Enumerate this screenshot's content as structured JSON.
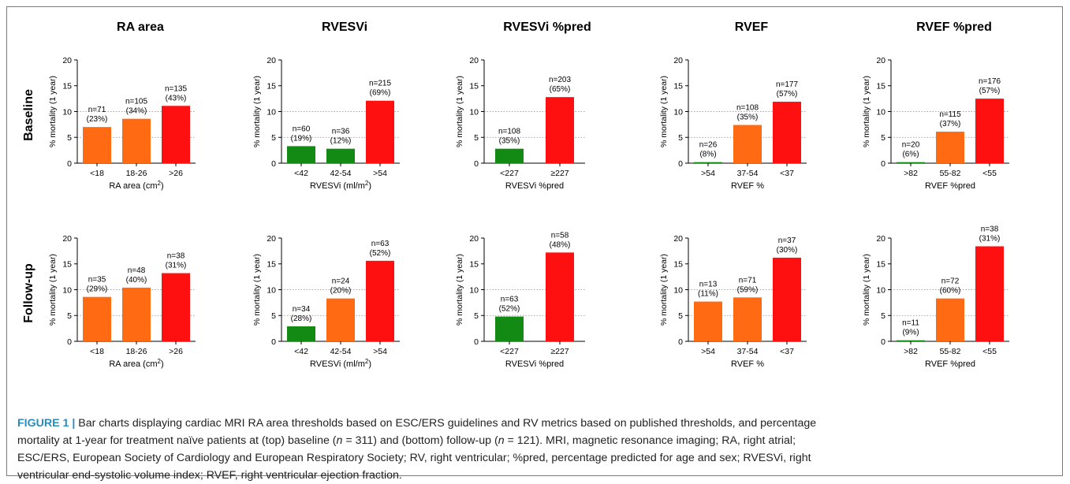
{
  "colors": {
    "green": "#138a13",
    "orange": "#ff6a12",
    "red": "#ff1010",
    "caption_label": "#2a8bbf"
  },
  "columns": [
    "RA area",
    "RVESVi",
    "RVESVi %pred",
    "RVEF",
    "RVEF %pred"
  ],
  "rows": [
    "Baseline",
    "Follow-up"
  ],
  "caption": {
    "label": "FIGURE 1 |",
    "line1": "Bar charts displaying cardiac MRI RA area thresholds based on ESC/ERS guidelines and RV metrics based on published thresholds, and percentage",
    "line2_a": "mortality at 1-year for treatment naïve patients at (top) baseline (",
    "line2_n1": "n",
    "line2_b": " = 311) and (bottom) follow-up (",
    "line2_n2": "n",
    "line2_c": " = 121). MRI, magnetic resonance imaging; RA, right atrial;",
    "line3": "ESC/ERS, European Society of Cardiology and European Respiratory Society; RV, right ventricular; %pred, percentage predicted for age and sex; RVESVi, right",
    "line4": "ventricular end-systolic volume index; RVEF, right ventricular ejection fraction."
  },
  "chart_data": [
    {
      "type": "bar",
      "row": "Baseline",
      "column": "RA area",
      "ylabel": "% mortality (1 year)",
      "xlabel": "RA area (cm",
      "xlabel_sup": "2",
      "xlabel_end": ")",
      "ylim": [
        0,
        20
      ],
      "yticks": [
        "0",
        "5",
        "10",
        "15",
        "20"
      ],
      "categories": [
        "<18",
        "18-26",
        ">26"
      ],
      "values": [
        7.0,
        8.6,
        11.1
      ],
      "colors": [
        "orange",
        "orange",
        "red"
      ],
      "labels_n": [
        "n=71",
        "n=105",
        "n=135"
      ],
      "labels_pct": [
        "(23%)",
        "(34%)",
        "(43%)"
      ]
    },
    {
      "type": "bar",
      "row": "Baseline",
      "column": "RVESVi",
      "ylabel": "% mortality (1 year)",
      "xlabel": "RVESVi (ml/m",
      "xlabel_sup": "2",
      "xlabel_end": ")",
      "ylim": [
        0,
        20
      ],
      "yticks": [
        "0",
        "5",
        "10",
        "15",
        "20"
      ],
      "categories": [
        "<42",
        "42-54",
        ">54"
      ],
      "values": [
        3.3,
        2.8,
        12.1
      ],
      "colors": [
        "green",
        "green",
        "red"
      ],
      "labels_n": [
        "n=60",
        "n=36",
        "n=215"
      ],
      "labels_pct": [
        "(19%)",
        "(12%)",
        "(69%)"
      ]
    },
    {
      "type": "bar",
      "row": "Baseline",
      "column": "RVESVi %pred",
      "ylabel": "% mortality (1 year)",
      "xlabel": "RVESVi %pred",
      "xlabel_sup": "",
      "xlabel_end": "",
      "ylim": [
        0,
        20
      ],
      "yticks": [
        "0",
        "5",
        "10",
        "15",
        "20"
      ],
      "categories": [
        "<227",
        "≥227"
      ],
      "values": [
        2.8,
        12.8
      ],
      "colors": [
        "green",
        "red"
      ],
      "labels_n": [
        "n=108",
        "n=203"
      ],
      "labels_pct": [
        "(35%)",
        "(65%)"
      ]
    },
    {
      "type": "bar",
      "row": "Baseline",
      "column": "RVEF",
      "ylabel": "% mortality (1 year)",
      "xlabel": "RVEF %",
      "xlabel_sup": "",
      "xlabel_end": "",
      "ylim": [
        0,
        20
      ],
      "yticks": [
        "0",
        "5",
        "10",
        "15",
        "20"
      ],
      "categories": [
        ">54",
        "37-54",
        "<37"
      ],
      "values": [
        0.2,
        7.4,
        11.9
      ],
      "colors": [
        "green",
        "orange",
        "red"
      ],
      "labels_n": [
        "n=26",
        "n=108",
        "n=177"
      ],
      "labels_pct": [
        "(8%)",
        "(35%)",
        "(57%)"
      ]
    },
    {
      "type": "bar",
      "row": "Baseline",
      "column": "RVEF %pred",
      "ylabel": "% mortality (1 year)",
      "xlabel": "RVEF %pred",
      "xlabel_sup": "",
      "xlabel_end": "",
      "ylim": [
        0,
        20
      ],
      "yticks": [
        "0",
        "5",
        "10",
        "15",
        "20"
      ],
      "categories": [
        ">82",
        "55-82",
        "<55"
      ],
      "values": [
        0.2,
        6.1,
        12.5
      ],
      "colors": [
        "green",
        "orange",
        "red"
      ],
      "labels_n": [
        "n=20",
        "n=115",
        "n=176"
      ],
      "labels_pct": [
        "(6%)",
        "(37%)",
        "(57%)"
      ]
    },
    {
      "type": "bar",
      "row": "Follow-up",
      "column": "RA area",
      "ylabel": "% mortality (1 year)",
      "xlabel": "RA area (cm",
      "xlabel_sup": "2",
      "xlabel_end": ")",
      "ylim": [
        0,
        20
      ],
      "yticks": [
        "0",
        "5",
        "10",
        "15",
        "20"
      ],
      "categories": [
        "<18",
        "18-26",
        ">26"
      ],
      "values": [
        8.6,
        10.4,
        13.2
      ],
      "colors": [
        "orange",
        "orange",
        "red"
      ],
      "labels_n": [
        "n=35",
        "n=48",
        "n=38"
      ],
      "labels_pct": [
        "(29%)",
        "(40%)",
        "(31%)"
      ]
    },
    {
      "type": "bar",
      "row": "Follow-up",
      "column": "RVESVi",
      "ylabel": "% mortality (1 year)",
      "xlabel": "RVESVi (ml/m",
      "xlabel_sup": "2",
      "xlabel_end": ")",
      "ylim": [
        0,
        20
      ],
      "yticks": [
        "0",
        "5",
        "10",
        "15",
        "20"
      ],
      "categories": [
        "<42",
        "42-54",
        ">54"
      ],
      "values": [
        2.9,
        8.3,
        15.6
      ],
      "colors": [
        "green",
        "orange",
        "red"
      ],
      "labels_n": [
        "n=34",
        "n=24",
        "n=63"
      ],
      "labels_pct": [
        "(28%)",
        "(20%)",
        "(52%)"
      ]
    },
    {
      "type": "bar",
      "row": "Follow-up",
      "column": "RVESVi %pred",
      "ylabel": "% mortality (1 year)",
      "xlabel": "RVESVi %pred",
      "xlabel_sup": "",
      "xlabel_end": "",
      "ylim": [
        0,
        20
      ],
      "yticks": [
        "0",
        "5",
        "10",
        "15",
        "20"
      ],
      "categories": [
        "<227",
        "≥227"
      ],
      "values": [
        4.8,
        17.2
      ],
      "colors": [
        "green",
        "red"
      ],
      "labels_n": [
        "n=63",
        "n=58"
      ],
      "labels_pct": [
        "(52%)",
        "(48%)"
      ]
    },
    {
      "type": "bar",
      "row": "Follow-up",
      "column": "RVEF",
      "ylabel": "% mortality (1 year)",
      "xlabel": "RVEF %",
      "xlabel_sup": "",
      "xlabel_end": "",
      "ylim": [
        0,
        20
      ],
      "yticks": [
        "0",
        "5",
        "10",
        "15",
        "20"
      ],
      "categories": [
        ">54",
        "37-54",
        "<37"
      ],
      "values": [
        7.7,
        8.5,
        16.2
      ],
      "colors": [
        "orange",
        "orange",
        "red"
      ],
      "labels_n": [
        "n=13",
        "n=71",
        "n=37"
      ],
      "labels_pct": [
        "(11%)",
        "(59%)",
        "(30%)"
      ]
    },
    {
      "type": "bar",
      "row": "Follow-up",
      "column": "RVEF %pred",
      "ylabel": "% mortality (1 year)",
      "xlabel": "RVEF %pred",
      "xlabel_sup": "",
      "xlabel_end": "",
      "ylim": [
        0,
        20
      ],
      "yticks": [
        "0",
        "5",
        "10",
        "15",
        "20"
      ],
      "categories": [
        ">82",
        "55-82",
        "<55"
      ],
      "values": [
        0.2,
        8.3,
        18.4
      ],
      "colors": [
        "green",
        "orange",
        "red"
      ],
      "labels_n": [
        "n=11",
        "n=72",
        "n=38"
      ],
      "labels_pct": [
        "(9%)",
        "(60%)",
        "(31%)"
      ]
    }
  ]
}
